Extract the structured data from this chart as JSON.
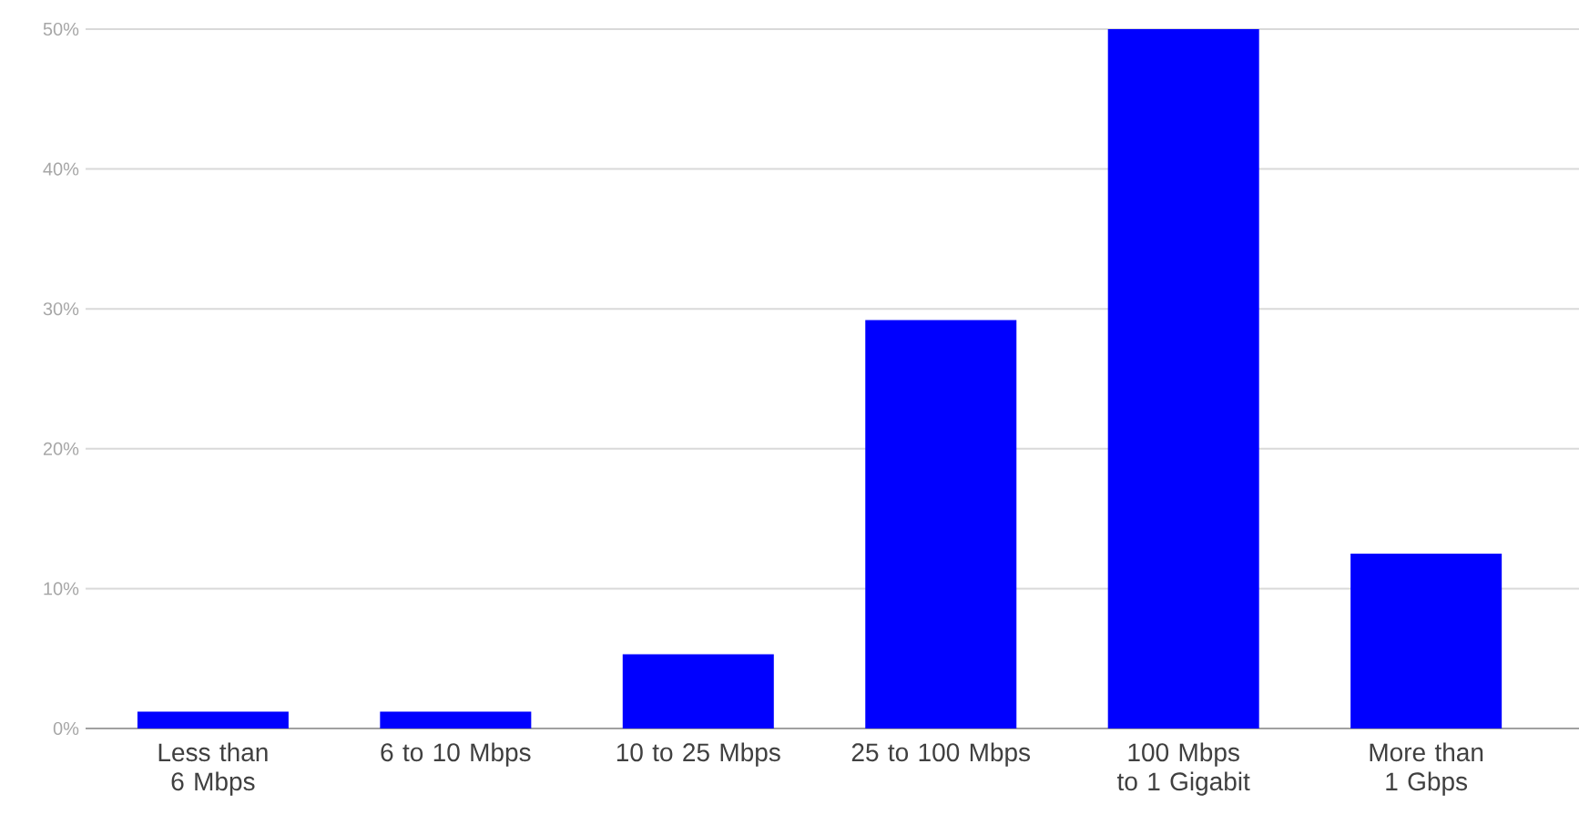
{
  "chart_data": {
    "type": "bar",
    "categories": [
      "Less than 6 Mbps",
      "6 to 10 Mbps",
      "10 to 25 Mbps",
      "25 to 100 Mbps",
      "100 Mbps to 1 Gigabit",
      "More than 1 Gbps"
    ],
    "values": [
      1.2,
      1.2,
      5.3,
      29.2,
      50,
      12.5
    ],
    "color": "#0000ff",
    "ylim": [
      0,
      50
    ],
    "yticks": [
      {
        "value": 0,
        "label": "0%"
      },
      {
        "value": 10,
        "label": "10%"
      },
      {
        "value": 20,
        "label": "20%"
      },
      {
        "value": 30,
        "label": "30%"
      },
      {
        "value": 40,
        "label": "40%"
      },
      {
        "value": 50,
        "label": "50%"
      }
    ],
    "grid": "y"
  }
}
